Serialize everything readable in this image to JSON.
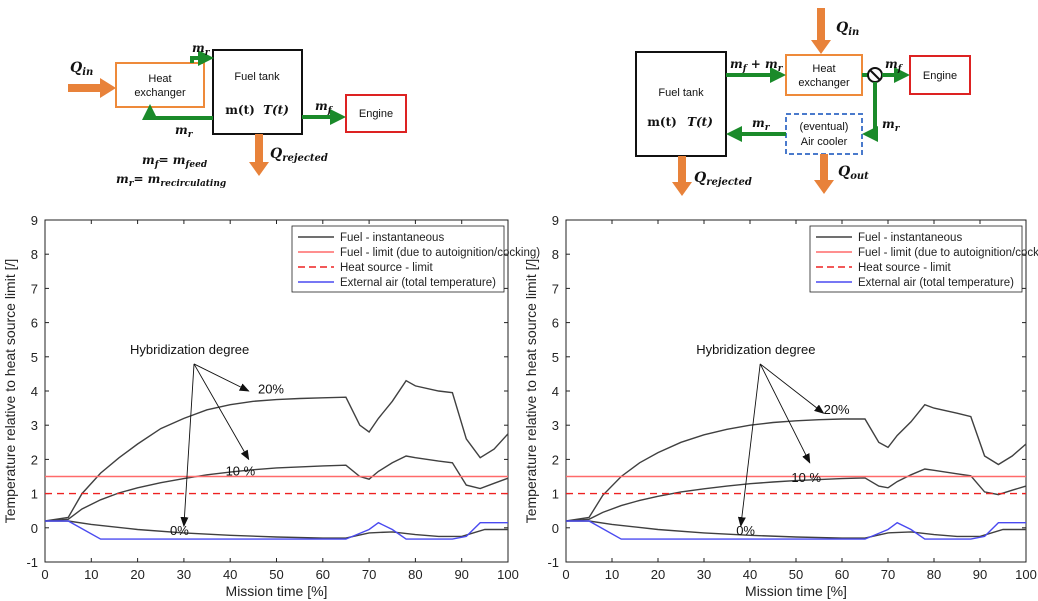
{
  "diagrams": [
    {
      "q_in": "Q",
      "q_in_sub": "in",
      "heat_exchanger": [
        "Heat",
        "exchanger"
      ],
      "fuel_tank": "Fuel tank",
      "tank_state": [
        "m(t)",
        "T(t)"
      ],
      "engine": "Engine",
      "mr_top": "m",
      "mr_top_sub": "r",
      "mr_bottom": "m",
      "mr_bottom_sub": "r",
      "mf": "m",
      "mf_sub": "f",
      "q_rejected": "Q",
      "q_rejected_sub": "rejected",
      "eq1": "m",
      "eq1_sub": "f",
      "eq1_rhs": "= m",
      "eq1_rhs_sub": "feed",
      "eq2": "m",
      "eq2_sub": "r",
      "eq2_rhs": "= m",
      "eq2_rhs_sub": "recirculating"
    },
    {
      "q_in": "Q",
      "q_in_sub": "in",
      "fuel_tank": "Fuel tank",
      "tank_state": [
        "m(t)",
        "T(t)"
      ],
      "heat_exchanger": [
        "Heat",
        "exchanger"
      ],
      "engine": "Engine",
      "air_cooler": [
        "(eventual)",
        "Air cooler"
      ],
      "mf_mr": "m",
      "mf_mr_sub1": "f",
      "mf_mr_plus": " + m",
      "mf_mr_sub2": "r",
      "mf": "m",
      "mf_sub": "f",
      "mr_right": "m",
      "mr_right_sub": "r",
      "mr_mid": "m",
      "mr_mid_sub": "r",
      "q_rejected": "Q",
      "q_rejected_sub": "rejected",
      "q_out": "Q",
      "q_out_sub": "out"
    }
  ],
  "colors": {
    "fuel": "#404040",
    "fuel_limit": "#ff6a6a",
    "heat_limit": "#ee2222",
    "external_air": "#4a4af0",
    "arrow_orange": "#e8823a",
    "arrow_green": "#1a8a2a",
    "hx_border": "#ee8a3a",
    "engine_border": "#dd2222",
    "cooler_border": "#4a7acc"
  },
  "chart_data": [
    {
      "type": "line",
      "xlabel": "Mission time [%]",
      "ylabel": "Temperature relative to heat source limit [/]",
      "xlim": [
        0,
        100
      ],
      "ylim": [
        -1,
        9
      ],
      "xticks": [
        0,
        10,
        20,
        30,
        40,
        50,
        60,
        70,
        80,
        90,
        100
      ],
      "yticks": [
        -1,
        0,
        1,
        2,
        3,
        4,
        5,
        6,
        7,
        8,
        9
      ],
      "grid": false,
      "legend_position": "top-right",
      "legend": [
        "Fuel - instantaneous",
        "Fuel - limit (due to autoignition/cocking)",
        "Heat source - limit",
        "External air (total temperature)"
      ],
      "annotation": "Hybridization degree",
      "series": [
        {
          "name": "Fuel - instantaneous",
          "label": "20%",
          "x": [
            0,
            5,
            8,
            12,
            16,
            20,
            25,
            30,
            35,
            40,
            45,
            50,
            55,
            60,
            65,
            68,
            70,
            72,
            75,
            78,
            80,
            85,
            88,
            91,
            94,
            97,
            100
          ],
          "y": [
            0.2,
            0.3,
            1.0,
            1.6,
            2.05,
            2.45,
            2.9,
            3.2,
            3.45,
            3.6,
            3.7,
            3.75,
            3.78,
            3.8,
            3.82,
            3.0,
            2.8,
            3.2,
            3.7,
            4.3,
            4.15,
            4.0,
            3.95,
            2.6,
            2.05,
            2.3,
            2.75
          ]
        },
        {
          "name": "Fuel - instantaneous",
          "label": "10 %",
          "x": [
            0,
            5,
            8,
            12,
            16,
            20,
            25,
            30,
            35,
            40,
            45,
            50,
            55,
            60,
            65,
            68,
            70,
            72,
            75,
            78,
            80,
            85,
            88,
            91,
            94,
            97,
            100
          ],
          "y": [
            0.2,
            0.25,
            0.55,
            0.82,
            1.02,
            1.17,
            1.32,
            1.44,
            1.55,
            1.63,
            1.7,
            1.75,
            1.78,
            1.81,
            1.83,
            1.5,
            1.42,
            1.65,
            1.9,
            2.1,
            2.05,
            1.95,
            1.9,
            1.25,
            1.15,
            1.3,
            1.45
          ]
        },
        {
          "name": "Fuel - instantaneous",
          "label": "0%",
          "x": [
            0,
            5,
            10,
            20,
            30,
            40,
            50,
            60,
            65,
            70,
            75,
            80,
            85,
            90,
            95,
            100
          ],
          "y": [
            0.2,
            0.2,
            0.1,
            -0.05,
            -0.15,
            -0.22,
            -0.27,
            -0.3,
            -0.3,
            -0.15,
            -0.12,
            -0.2,
            -0.25,
            -0.25,
            -0.05,
            -0.05
          ]
        },
        {
          "name": "Fuel - limit (due to autoignition/cocking)",
          "x": [
            0,
            100
          ],
          "y": [
            1.5,
            1.5
          ]
        },
        {
          "name": "Heat source - limit",
          "x": [
            0,
            100
          ],
          "y": [
            1.0,
            1.0
          ]
        },
        {
          "name": "External air (total temperature)",
          "x": [
            0,
            5,
            12,
            65,
            70,
            72,
            75,
            78,
            88,
            91,
            94,
            100
          ],
          "y": [
            0.2,
            0.2,
            -0.33,
            -0.33,
            -0.05,
            0.15,
            -0.05,
            -0.33,
            -0.33,
            -0.25,
            0.15,
            0.15
          ]
        }
      ]
    },
    {
      "type": "line",
      "xlabel": "Mission time [%]",
      "ylabel": "Temperature relative to heat source limit [/]",
      "xlim": [
        0,
        100
      ],
      "ylim": [
        -1,
        9
      ],
      "xticks": [
        0,
        10,
        20,
        30,
        40,
        50,
        60,
        70,
        80,
        90,
        100
      ],
      "yticks": [
        -1,
        0,
        1,
        2,
        3,
        4,
        5,
        6,
        7,
        8,
        9
      ],
      "grid": false,
      "legend_position": "top-right",
      "legend": [
        "Fuel - instantaneous",
        "Fuel - limit (due to autoignition/cocking)",
        "Heat source - limit",
        "External air (total temperature)"
      ],
      "annotation": "Hybridization degree",
      "series": [
        {
          "name": "Fuel - instantaneous",
          "label": "20%",
          "x": [
            0,
            5,
            8,
            12,
            16,
            20,
            25,
            30,
            35,
            40,
            45,
            50,
            55,
            60,
            65,
            68,
            70,
            72,
            75,
            78,
            80,
            85,
            88,
            91,
            94,
            97,
            100
          ],
          "y": [
            0.2,
            0.3,
            0.95,
            1.5,
            1.9,
            2.2,
            2.5,
            2.72,
            2.88,
            3.0,
            3.08,
            3.13,
            3.16,
            3.18,
            3.18,
            2.5,
            2.35,
            2.7,
            3.1,
            3.6,
            3.5,
            3.35,
            3.25,
            2.1,
            1.85,
            2.1,
            2.45
          ]
        },
        {
          "name": "Fuel - instantaneous",
          "label": "10 %",
          "x": [
            0,
            5,
            8,
            12,
            16,
            20,
            25,
            30,
            35,
            40,
            45,
            50,
            55,
            60,
            65,
            68,
            70,
            72,
            75,
            78,
            80,
            85,
            88,
            91,
            94,
            97,
            100
          ],
          "y": [
            0.2,
            0.25,
            0.45,
            0.65,
            0.8,
            0.92,
            1.05,
            1.14,
            1.22,
            1.29,
            1.34,
            1.38,
            1.41,
            1.44,
            1.46,
            1.22,
            1.17,
            1.35,
            1.55,
            1.72,
            1.68,
            1.58,
            1.52,
            1.05,
            0.97,
            1.1,
            1.22
          ]
        },
        {
          "name": "Fuel - instantaneous",
          "label": "0%",
          "x": [
            0,
            5,
            10,
            20,
            30,
            40,
            50,
            60,
            65,
            70,
            75,
            80,
            85,
            90,
            95,
            100
          ],
          "y": [
            0.2,
            0.2,
            0.1,
            -0.05,
            -0.15,
            -0.22,
            -0.27,
            -0.3,
            -0.3,
            -0.15,
            -0.12,
            -0.2,
            -0.25,
            -0.25,
            -0.05,
            -0.05
          ]
        },
        {
          "name": "Fuel - limit (due to autoignition/cocking)",
          "x": [
            0,
            100
          ],
          "y": [
            1.5,
            1.5
          ]
        },
        {
          "name": "Heat source - limit",
          "x": [
            0,
            100
          ],
          "y": [
            1.0,
            1.0
          ]
        },
        {
          "name": "External air (total temperature)",
          "x": [
            0,
            5,
            12,
            65,
            70,
            72,
            75,
            78,
            88,
            91,
            94,
            100
          ],
          "y": [
            0.2,
            0.2,
            -0.33,
            -0.33,
            -0.05,
            0.15,
            -0.05,
            -0.33,
            -0.33,
            -0.25,
            0.15,
            0.15
          ]
        }
      ]
    }
  ]
}
